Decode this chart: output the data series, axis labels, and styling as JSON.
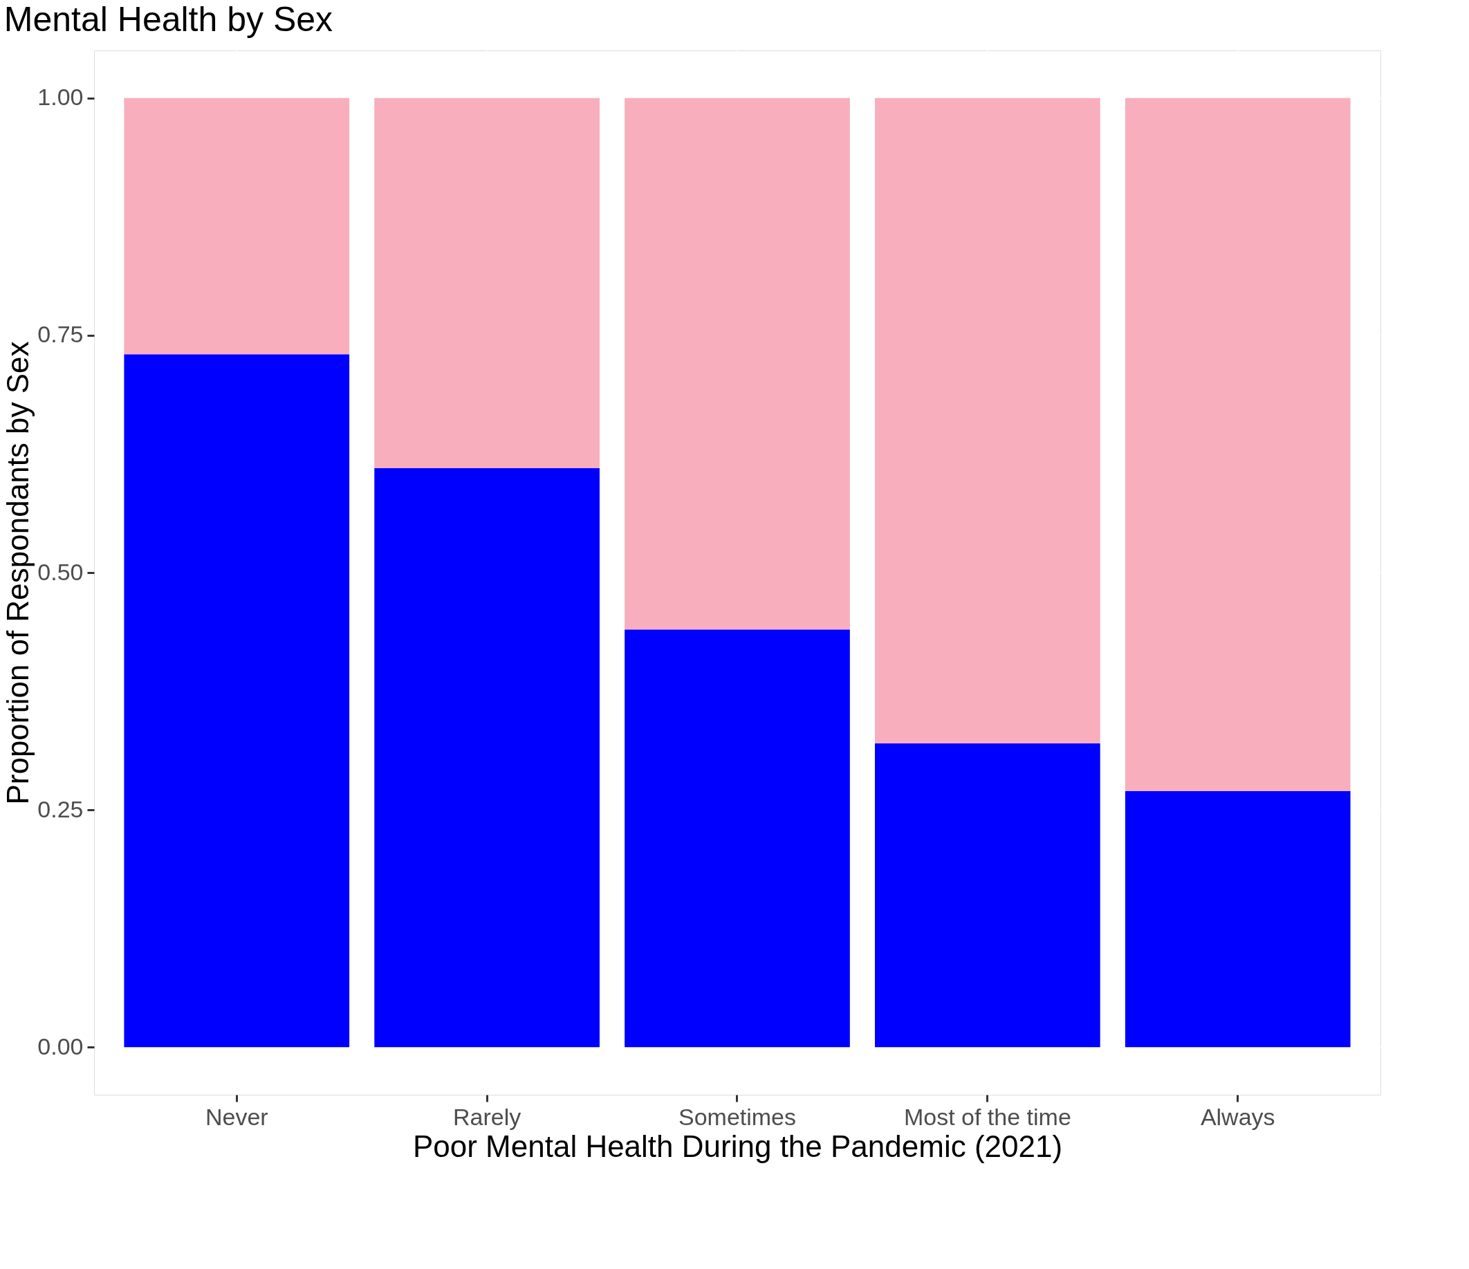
{
  "chart_data": {
    "type": "bar",
    "title": "Mental Health by Sex",
    "xlabel": "Poor Mental Health During the Pandemic (2021)",
    "ylabel": "Proportion of Respondants by Sex",
    "categories": [
      "Never",
      "Rarely",
      "Sometimes",
      "Most of the time",
      "Always"
    ],
    "stacked": true,
    "series": [
      {
        "color": "#0000ff",
        "values": [
          0.73,
          0.61,
          0.44,
          0.32,
          0.27
        ]
      },
      {
        "color": "#f8aebd",
        "values": [
          0.27,
          0.39,
          0.56,
          0.68,
          0.73
        ]
      }
    ],
    "ylim": [
      -0.05,
      1.05
    ],
    "yticks": [
      {
        "value": 0,
        "label": "0.00"
      },
      {
        "value": 0.25,
        "label": "0.25"
      },
      {
        "value": 0.5,
        "label": "0.50"
      },
      {
        "value": 0.75,
        "label": "0.75"
      },
      {
        "value": 1,
        "label": "1.00"
      }
    ],
    "grid": true,
    "legend": false
  }
}
